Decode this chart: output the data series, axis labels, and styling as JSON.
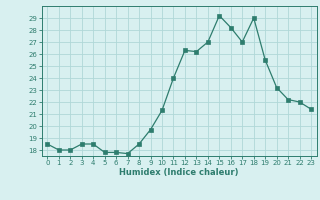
{
  "x": [
    0,
    1,
    2,
    3,
    4,
    5,
    6,
    7,
    8,
    9,
    10,
    11,
    12,
    13,
    14,
    15,
    16,
    17,
    18,
    19,
    20,
    21,
    22,
    23
  ],
  "y": [
    18.5,
    18.0,
    18.0,
    18.5,
    18.5,
    17.8,
    17.8,
    17.7,
    18.5,
    19.7,
    21.3,
    24.0,
    26.3,
    26.2,
    27.0,
    29.2,
    28.2,
    27.0,
    29.0,
    25.5,
    23.2,
    22.2,
    22.0,
    21.4
  ],
  "xlabel": "Humidex (Indice chaleur)",
  "ylabel": "",
  "title": "",
  "line_color": "#2e7d6e",
  "marker_color": "#2e7d6e",
  "bg_color": "#d8f0f0",
  "grid_color": "#b0d8d8",
  "tick_color": "#2e7d6e",
  "label_color": "#2e7d6e",
  "ylim": [
    17.5,
    30
  ],
  "xlim": [
    -0.5,
    23.5
  ],
  "yticks": [
    18,
    19,
    20,
    21,
    22,
    23,
    24,
    25,
    26,
    27,
    28,
    29
  ],
  "xticks": [
    0,
    1,
    2,
    3,
    4,
    5,
    6,
    7,
    8,
    9,
    10,
    11,
    12,
    13,
    14,
    15,
    16,
    17,
    18,
    19,
    20,
    21,
    22,
    23
  ],
  "xtick_labels": [
    "0",
    "1",
    "2",
    "3",
    "4",
    "5",
    "6",
    "7",
    "8",
    "9",
    "10",
    "11",
    "12",
    "13",
    "14",
    "15",
    "16",
    "17",
    "18",
    "19",
    "20",
    "21",
    "22",
    "23"
  ],
  "ytick_labels": [
    "18",
    "19",
    "20",
    "21",
    "22",
    "23",
    "24",
    "25",
    "26",
    "27",
    "28",
    "29"
  ]
}
